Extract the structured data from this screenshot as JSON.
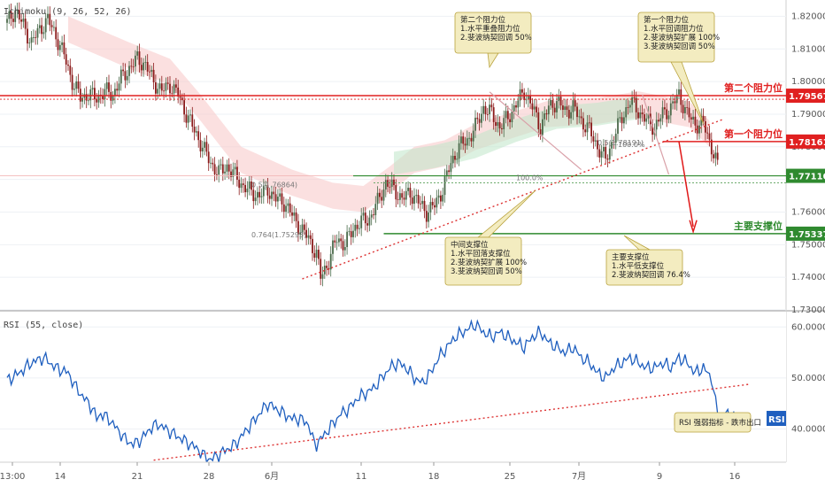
{
  "chart_data": [
    {
      "type": "candlestick",
      "indicator_label": "Ichimoku (9, 26, 52, 26)",
      "ylim": [
        1.73,
        1.825
      ],
      "y_ticks": [
        "1.82000",
        "1.81000",
        "1.80000",
        "1.79000",
        "1.78000",
        "1.77000",
        "1.76000",
        "1.75000",
        "1.74000",
        "1.73000"
      ],
      "x_ticks": [
        "13:00",
        "14",
        "21",
        "28",
        "6月",
        "11",
        "18",
        "25",
        "7月",
        "9",
        "16"
      ],
      "price_close_path": [
        [
          0,
          1.818
        ],
        [
          4,
          1.822
        ],
        [
          8,
          1.817
        ],
        [
          12,
          1.812
        ],
        [
          16,
          1.816
        ],
        [
          20,
          1.819
        ],
        [
          24,
          1.814
        ],
        [
          28,
          1.808
        ],
        [
          32,
          1.8
        ],
        [
          36,
          1.795
        ],
        [
          40,
          1.796
        ],
        [
          44,
          1.795
        ],
        [
          48,
          1.797
        ],
        [
          52,
          1.796
        ],
        [
          56,
          1.801
        ],
        [
          60,
          1.804
        ],
        [
          64,
          1.807
        ],
        [
          68,
          1.805
        ],
        [
          72,
          1.8
        ],
        [
          76,
          1.797
        ],
        [
          80,
          1.799
        ],
        [
          84,
          1.796
        ],
        [
          88,
          1.79
        ],
        [
          92,
          1.785
        ],
        [
          96,
          1.78
        ],
        [
          100,
          1.775
        ],
        [
          104,
          1.772
        ],
        [
          108,
          1.774
        ],
        [
          112,
          1.771
        ],
        [
          116,
          1.768
        ],
        [
          120,
          1.766
        ],
        [
          124,
          1.765
        ],
        [
          128,
          1.767
        ],
        [
          132,
          1.764
        ],
        [
          136,
          1.763
        ],
        [
          140,
          1.759
        ],
        [
          144,
          1.755
        ],
        [
          148,
          1.752
        ],
        [
          152,
          1.747
        ],
        [
          154,
          1.74
        ],
        [
          158,
          1.745
        ],
        [
          162,
          1.752
        ],
        [
          166,
          1.75
        ],
        [
          170,
          1.755
        ],
        [
          174,
          1.757
        ],
        [
          178,
          1.758
        ],
        [
          182,
          1.763
        ],
        [
          186,
          1.769
        ],
        [
          190,
          1.767
        ],
        [
          194,
          1.764
        ],
        [
          198,
          1.766
        ],
        [
          202,
          1.763
        ],
        [
          206,
          1.76
        ],
        [
          210,
          1.762
        ],
        [
          214,
          1.767
        ],
        [
          218,
          1.775
        ],
        [
          222,
          1.78
        ],
        [
          226,
          1.782
        ],
        [
          230,
          1.786
        ],
        [
          234,
          1.792
        ],
        [
          238,
          1.79
        ],
        [
          242,
          1.786
        ],
        [
          246,
          1.789
        ],
        [
          250,
          1.793
        ],
        [
          254,
          1.797
        ],
        [
          258,
          1.792
        ],
        [
          262,
          1.786
        ],
        [
          266,
          1.792
        ],
        [
          270,
          1.794
        ],
        [
          274,
          1.791
        ],
        [
          278,
          1.792
        ],
        [
          282,
          1.788
        ],
        [
          286,
          1.785
        ],
        [
          290,
          1.78
        ],
        [
          294,
          1.776
        ],
        [
          298,
          1.783
        ],
        [
          302,
          1.789
        ],
        [
          306,
          1.794
        ],
        [
          310,
          1.791
        ],
        [
          314,
          1.788
        ],
        [
          318,
          1.786
        ],
        [
          322,
          1.79
        ],
        [
          326,
          1.792
        ],
        [
          330,
          1.796
        ],
        [
          334,
          1.79
        ],
        [
          338,
          1.787
        ],
        [
          342,
          1.787
        ],
        [
          346,
          1.78
        ],
        [
          350,
          1.772
        ]
      ],
      "levels": [
        {
          "label": "第二个阻力位",
          "value": "1.79567",
          "color": "#e02020"
        },
        {
          "label": "第一个阻力位",
          "value": "1.78161",
          "color": "#e02020"
        },
        {
          "label": "",
          "value": "1.77110",
          "color": "#2f8a2f"
        },
        {
          "label": "主要支撑位",
          "value": "1.75337",
          "color": "#2f8a2f"
        }
      ],
      "fib_labels": [
        "0.5(1.76864)",
        "0.764(1.75293)",
        "0.5(1.78191)",
        "100.0%",
        "100.0%"
      ],
      "callouts": [
        {
          "lines": [
            "第二个阻力位",
            "1.水平重叠阻力位",
            "2.斐波纳契回调 50%"
          ]
        },
        {
          "lines": [
            "第一个阻力位",
            "1.水平回调阻力位",
            "2.斐波纳契扩展 100%",
            "3.斐波纳契回调 50%"
          ]
        },
        {
          "lines": [
            "中间支撑位",
            "1.水平回落支撑位",
            "2.斐波纳契扩展 100%",
            "3.斐波纳契回调 50%"
          ]
        },
        {
          "lines": [
            "主要支撑位",
            "1.水平低支撑位",
            "2.斐波纳契回调 76.4%"
          ]
        }
      ]
    },
    {
      "type": "line",
      "indicator_label": "RSI (55, close)",
      "ylim": [
        33.5,
        63
      ],
      "y_ticks": [
        "60.0000",
        "50.0000",
        "40.0000"
      ],
      "series": [
        {
          "name": "RSI",
          "color": "#1f5fbf",
          "points": [
            [
              0,
              49.5
            ],
            [
              6,
              51
            ],
            [
              12,
              53
            ],
            [
              18,
              54
            ],
            [
              24,
              52
            ],
            [
              30,
              51
            ],
            [
              34,
              48
            ],
            [
              38,
              46
            ],
            [
              42,
              44
            ],
            [
              44,
              42
            ],
            [
              46,
              43
            ],
            [
              50,
              42
            ],
            [
              54,
              40
            ],
            [
              58,
              38
            ],
            [
              62,
              37
            ],
            [
              66,
              38
            ],
            [
              70,
              40
            ],
            [
              74,
              41
            ],
            [
              78,
              40
            ],
            [
              82,
              39
            ],
            [
              86,
              38
            ],
            [
              90,
              37
            ],
            [
              94,
              36
            ],
            [
              96,
              35
            ],
            [
              100,
              34
            ],
            [
              104,
              35
            ],
            [
              108,
              36
            ],
            [
              112,
              37
            ],
            [
              116,
              39
            ],
            [
              120,
              41
            ],
            [
              124,
              43
            ],
            [
              128,
              45
            ],
            [
              132,
              44
            ],
            [
              136,
              43
            ],
            [
              140,
              42
            ],
            [
              144,
              42
            ],
            [
              148,
              41
            ],
            [
              150,
              38
            ],
            [
              152,
              37
            ],
            [
              156,
              39
            ],
            [
              160,
              41
            ],
            [
              164,
              43
            ],
            [
              168,
              44
            ],
            [
              172,
              46
            ],
            [
              176,
              47
            ],
            [
              180,
              48
            ],
            [
              184,
              50
            ],
            [
              188,
              52
            ],
            [
              192,
              53
            ],
            [
              196,
              52
            ],
            [
              200,
              50
            ],
            [
              204,
              49
            ],
            [
              208,
              51
            ],
            [
              212,
              54
            ],
            [
              216,
              56
            ],
            [
              220,
              58
            ],
            [
              224,
              59
            ],
            [
              228,
              60
            ],
            [
              230,
              60.5
            ],
            [
              234,
              59
            ],
            [
              238,
              58
            ],
            [
              242,
              59
            ],
            [
              246,
              58
            ],
            [
              250,
              57
            ],
            [
              254,
              56
            ],
            [
              258,
              58
            ],
            [
              262,
              59
            ],
            [
              266,
              57
            ],
            [
              270,
              56
            ],
            [
              274,
              55
            ],
            [
              278,
              56
            ],
            [
              282,
              54
            ],
            [
              286,
              53
            ],
            [
              290,
              51
            ],
            [
              294,
              50
            ],
            [
              298,
              52
            ],
            [
              302,
              53
            ],
            [
              306,
              54
            ],
            [
              310,
              53
            ],
            [
              314,
              52
            ],
            [
              318,
              52
            ],
            [
              322,
              53
            ],
            [
              326,
              52
            ],
            [
              330,
              54
            ],
            [
              334,
              53
            ],
            [
              338,
              51
            ],
            [
              342,
              52
            ],
            [
              346,
              50
            ],
            [
              348,
              45
            ],
            [
              350,
              42
            ],
            [
              354,
              43
            ],
            [
              358,
              42
            ]
          ]
        }
      ],
      "badge": "RSI",
      "note": "RSI 强弱指标 - 跌市出口"
    }
  ]
}
